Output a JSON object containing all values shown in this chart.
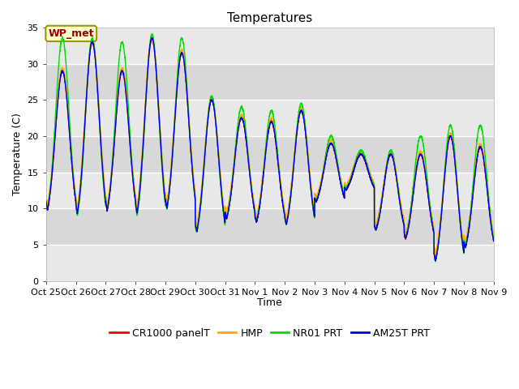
{
  "title": "Temperatures",
  "ylabel": "Temperature (C)",
  "xlabel": "Time",
  "annotation_text": "WP_met",
  "annotation_bg": "#ffffcc",
  "annotation_border": "#999900",
  "annotation_text_color": "#990000",
  "ylim": [
    0,
    35
  ],
  "yticks": [
    0,
    5,
    10,
    15,
    20,
    25,
    30,
    35
  ],
  "xtick_labels": [
    "Oct 25",
    "Oct 26",
    "Oct 27",
    "Oct 28",
    "Oct 29",
    "Oct 30",
    "Oct 31",
    "Nov 1",
    "Nov 2",
    "Nov 3",
    "Nov 4",
    "Nov 5",
    "Nov 6",
    "Nov 7",
    "Nov 8",
    "Nov 9"
  ],
  "series_colors": [
    "#ff0000",
    "#ffaa00",
    "#00dd00",
    "#0000ee"
  ],
  "series_labels": [
    "CR1000 panelT",
    "HMP",
    "NR01 PRT",
    "AM25T PRT"
  ],
  "line_width": 1.0,
  "plot_bg_bands": [
    "#e8e8e8",
    "#d8d8d8"
  ],
  "grid_color": "#ffffff",
  "title_fontsize": 11,
  "axis_label_fontsize": 9,
  "tick_fontsize": 8,
  "legend_fontsize": 9,
  "day_peaks": [
    29.0,
    33.0,
    29.0,
    33.5,
    31.5,
    25.0,
    22.5,
    22.0,
    23.5,
    19.0,
    17.5,
    17.5,
    17.5,
    20.0,
    18.5
  ],
  "day_troughs": [
    7.5,
    6.5,
    7.5,
    6.5,
    7.5,
    4.7,
    7.0,
    6.5,
    6.0,
    10.0,
    12.0,
    5.8,
    4.5,
    0.8,
    3.0
  ],
  "nr01_extra_peak": [
    4.5,
    0.5,
    4.0,
    0.5,
    2.0,
    0.5,
    1.5,
    1.5,
    1.0,
    1.0,
    0.5,
    0.5,
    2.5,
    1.5,
    3.0
  ]
}
